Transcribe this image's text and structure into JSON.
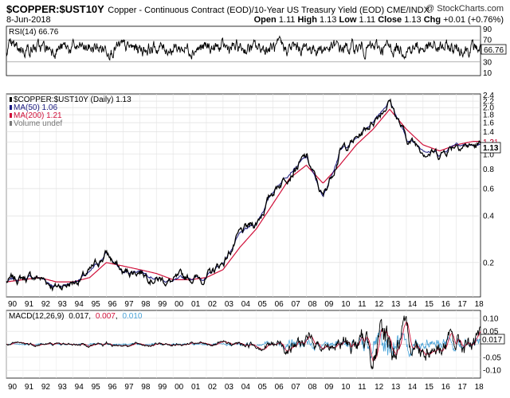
{
  "header": {
    "symbol": "$COPPER:$UST10Y",
    "description": "Copper - Continuous Contract (EOD)/10-Year US Treasury Yield (EOD) CME/INDX",
    "watermark": "@ StockCharts.com",
    "date": "8-Jun-2018",
    "ohlc": {
      "open_label": "Open",
      "open": "1.11",
      "high_label": "High",
      "high": "1.13",
      "low_label": "Low",
      "low": "1.11",
      "close_label": "Close",
      "close": "1.13",
      "chg_label": "Chg",
      "chg": "+0.01 (+0.76%)"
    }
  },
  "colors": {
    "price": "#000000",
    "ma50": "#1a1a80",
    "ma200": "#d0103a",
    "macd": "#000000",
    "signal": "#d0103a",
    "histogram": "#4aa3d8",
    "rsi_band": "#999999"
  },
  "chart_data": [
    {
      "type": "line",
      "panel": "RSI",
      "label": "RSI(14) 66.76",
      "current_value": "66.76",
      "ylim": [
        10,
        90
      ],
      "y_ticks": [
        "90",
        "70",
        "50",
        "30",
        "10"
      ]
    },
    {
      "type": "line",
      "panel": "price",
      "scale": "log",
      "legend": [
        {
          "text": "$COPPER:$UST10Y (Daily) 1.13",
          "color": "#000000"
        },
        {
          "text": "MA(50) 1.06",
          "color": "#1a1a80"
        },
        {
          "text": "MA(200) 1.21",
          "color": "#d0103a"
        },
        {
          "text": "Volume undef",
          "color": "#777777"
        }
      ],
      "y_ticks": [
        "2.4",
        "2.2",
        "2.0",
        "1.8",
        "1.6",
        "1.4",
        "1.2",
        "1.0",
        "0.8",
        "0.6",
        "0.4",
        "0.2"
      ],
      "current_label": "1.13",
      "ma200_label": "1.21",
      "x": [
        1990,
        1991,
        1992,
        1993,
        1994,
        1995,
        1996,
        1997,
        1998,
        1999,
        2000,
        2001,
        2002,
        2003,
        2004,
        2005,
        2006,
        2007,
        2008,
        2009,
        2010,
        2011,
        2012,
        2013,
        2014,
        2015,
        2016,
        2017,
        2018
      ],
      "series": [
        {
          "name": "$COPPER:$UST10Y (Daily)",
          "values": [
            0.15,
            0.16,
            0.16,
            0.14,
            0.15,
            0.17,
            0.23,
            0.17,
            0.18,
            0.16,
            0.15,
            0.16,
            0.16,
            0.2,
            0.3,
            0.36,
            0.58,
            0.78,
            0.95,
            0.52,
            1.05,
            1.25,
            1.65,
            2.25,
            1.25,
            1.1,
            1.0,
            1.2,
            1.13
          ]
        },
        {
          "name": "MA(200)",
          "values": [
            0.15,
            0.155,
            0.16,
            0.15,
            0.15,
            0.16,
            0.2,
            0.19,
            0.18,
            0.17,
            0.155,
            0.155,
            0.16,
            0.18,
            0.25,
            0.33,
            0.48,
            0.7,
            0.85,
            0.65,
            0.85,
            1.15,
            1.45,
            1.95,
            1.45,
            1.15,
            1.05,
            1.15,
            1.21
          ]
        }
      ],
      "x_tick_labels": [
        "90",
        "91",
        "92",
        "93",
        "94",
        "95",
        "96",
        "97",
        "98",
        "99",
        "00",
        "01",
        "02",
        "03",
        "04",
        "05",
        "06",
        "07",
        "08",
        "09",
        "10",
        "11",
        "12",
        "13",
        "14",
        "15",
        "16",
        "17",
        "18"
      ]
    },
    {
      "type": "line",
      "panel": "MACD",
      "label_prefix": "MACD(12,26,9)",
      "macd_value": "0.017",
      "signal_value": "0.007",
      "hist_value": "0.010",
      "current_value": "0.017",
      "y_ticks": [
        "0.10",
        "0.05",
        "-0.05",
        "-0.10"
      ],
      "ylim": [
        -0.13,
        0.13
      ],
      "x_tick_labels": [
        "90",
        "91",
        "92",
        "93",
        "94",
        "95",
        "96",
        "97",
        "98",
        "99",
        "00",
        "01",
        "02",
        "03",
        "04",
        "05",
        "06",
        "07",
        "08",
        "09",
        "10",
        "11",
        "12",
        "13",
        "14",
        "15",
        "16",
        "17",
        "18"
      ]
    }
  ]
}
